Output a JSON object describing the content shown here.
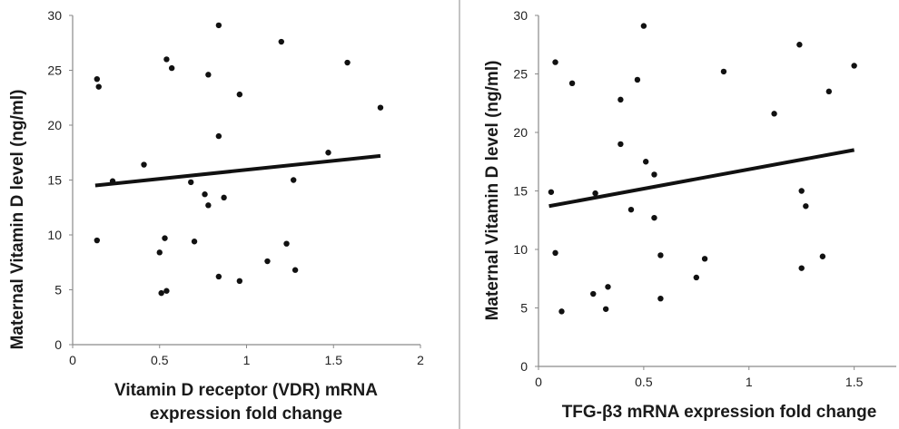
{
  "colors": {
    "ink": "#111111",
    "axis": "#8a8a8a",
    "divider": "#b0b0b0",
    "background": "#ffffff"
  },
  "chart_data": [
    {
      "type": "scatter",
      "title": "",
      "xlabel_lines": [
        "Vitamin D receptor (VDR) mRNA",
        "expression fold change"
      ],
      "ylabel": "Maternal Vitamin D level (ng/ml)",
      "xlim": [
        0,
        2
      ],
      "ylim": [
        0,
        30
      ],
      "xticks": [
        0,
        0.5,
        1,
        1.5,
        2
      ],
      "xtick_labels": [
        "0",
        "0.5",
        "1",
        "1.5",
        "2"
      ],
      "yticks": [
        0,
        5,
        10,
        15,
        20,
        25,
        30
      ],
      "ytick_labels": [
        "0",
        "5",
        "10",
        "15",
        "20",
        "25",
        "30"
      ],
      "points": [
        {
          "x": 0.14,
          "y": 24.2
        },
        {
          "x": 0.15,
          "y": 23.5
        },
        {
          "x": 0.14,
          "y": 9.5
        },
        {
          "x": 0.23,
          "y": 14.9
        },
        {
          "x": 0.41,
          "y": 16.4
        },
        {
          "x": 0.5,
          "y": 8.4
        },
        {
          "x": 0.51,
          "y": 4.7
        },
        {
          "x": 0.53,
          "y": 9.7
        },
        {
          "x": 0.54,
          "y": 4.9
        },
        {
          "x": 0.54,
          "y": 26.0
        },
        {
          "x": 0.57,
          "y": 25.2
        },
        {
          "x": 0.68,
          "y": 14.8
        },
        {
          "x": 0.7,
          "y": 9.4
        },
        {
          "x": 0.76,
          "y": 13.7
        },
        {
          "x": 0.78,
          "y": 24.6
        },
        {
          "x": 0.78,
          "y": 12.7
        },
        {
          "x": 0.84,
          "y": 29.1
        },
        {
          "x": 0.84,
          "y": 19.0
        },
        {
          "x": 0.84,
          "y": 6.2
        },
        {
          "x": 0.87,
          "y": 13.4
        },
        {
          "x": 0.96,
          "y": 22.8
        },
        {
          "x": 0.96,
          "y": 5.8
        },
        {
          "x": 1.12,
          "y": 7.6
        },
        {
          "x": 1.2,
          "y": 27.6
        },
        {
          "x": 1.23,
          "y": 9.2
        },
        {
          "x": 1.27,
          "y": 15.0
        },
        {
          "x": 1.28,
          "y": 6.8
        },
        {
          "x": 1.47,
          "y": 17.5
        },
        {
          "x": 1.58,
          "y": 25.7
        },
        {
          "x": 1.77,
          "y": 21.6
        }
      ],
      "trendline": {
        "x": [
          0.13,
          1.77
        ],
        "y": [
          14.5,
          17.2
        ]
      }
    },
    {
      "type": "scatter",
      "title": "",
      "xlabel_lines": [
        "TFG-β3 mRNA expression fold change"
      ],
      "ylabel": "Maternal Vitamin D level (ng/ml)",
      "xlim": [
        0,
        1.7
      ],
      "ylim": [
        0,
        30
      ],
      "xticks": [
        0,
        0.5,
        1,
        1.5
      ],
      "xtick_labels": [
        "0",
        "0.5",
        "1",
        "1.5"
      ],
      "yticks": [
        0,
        5,
        10,
        15,
        20,
        25,
        30
      ],
      "ytick_labels": [
        "0",
        "5",
        "10",
        "15",
        "20",
        "25",
        "30"
      ],
      "points": [
        {
          "x": 0.06,
          "y": 14.9
        },
        {
          "x": 0.08,
          "y": 26.0
        },
        {
          "x": 0.08,
          "y": 9.7
        },
        {
          "x": 0.11,
          "y": 4.7
        },
        {
          "x": 0.16,
          "y": 24.2
        },
        {
          "x": 0.26,
          "y": 6.2
        },
        {
          "x": 0.27,
          "y": 14.8
        },
        {
          "x": 0.32,
          "y": 4.9
        },
        {
          "x": 0.33,
          "y": 6.8
        },
        {
          "x": 0.39,
          "y": 22.8
        },
        {
          "x": 0.39,
          "y": 19.0
        },
        {
          "x": 0.44,
          "y": 13.4
        },
        {
          "x": 0.47,
          "y": 24.5
        },
        {
          "x": 0.5,
          "y": 29.1
        },
        {
          "x": 0.51,
          "y": 17.5
        },
        {
          "x": 0.55,
          "y": 16.4
        },
        {
          "x": 0.55,
          "y": 12.7
        },
        {
          "x": 0.58,
          "y": 9.5
        },
        {
          "x": 0.58,
          "y": 5.8
        },
        {
          "x": 0.75,
          "y": 7.6
        },
        {
          "x": 0.79,
          "y": 9.2
        },
        {
          "x": 0.88,
          "y": 25.2
        },
        {
          "x": 1.12,
          "y": 21.6
        },
        {
          "x": 1.24,
          "y": 27.5
        },
        {
          "x": 1.25,
          "y": 15.0
        },
        {
          "x": 1.25,
          "y": 8.4
        },
        {
          "x": 1.27,
          "y": 13.7
        },
        {
          "x": 1.35,
          "y": 9.4
        },
        {
          "x": 1.38,
          "y": 23.5
        },
        {
          "x": 1.5,
          "y": 25.7
        }
      ],
      "trendline": {
        "x": [
          0.05,
          1.5
        ],
        "y": [
          13.7,
          18.5
        ]
      }
    }
  ]
}
